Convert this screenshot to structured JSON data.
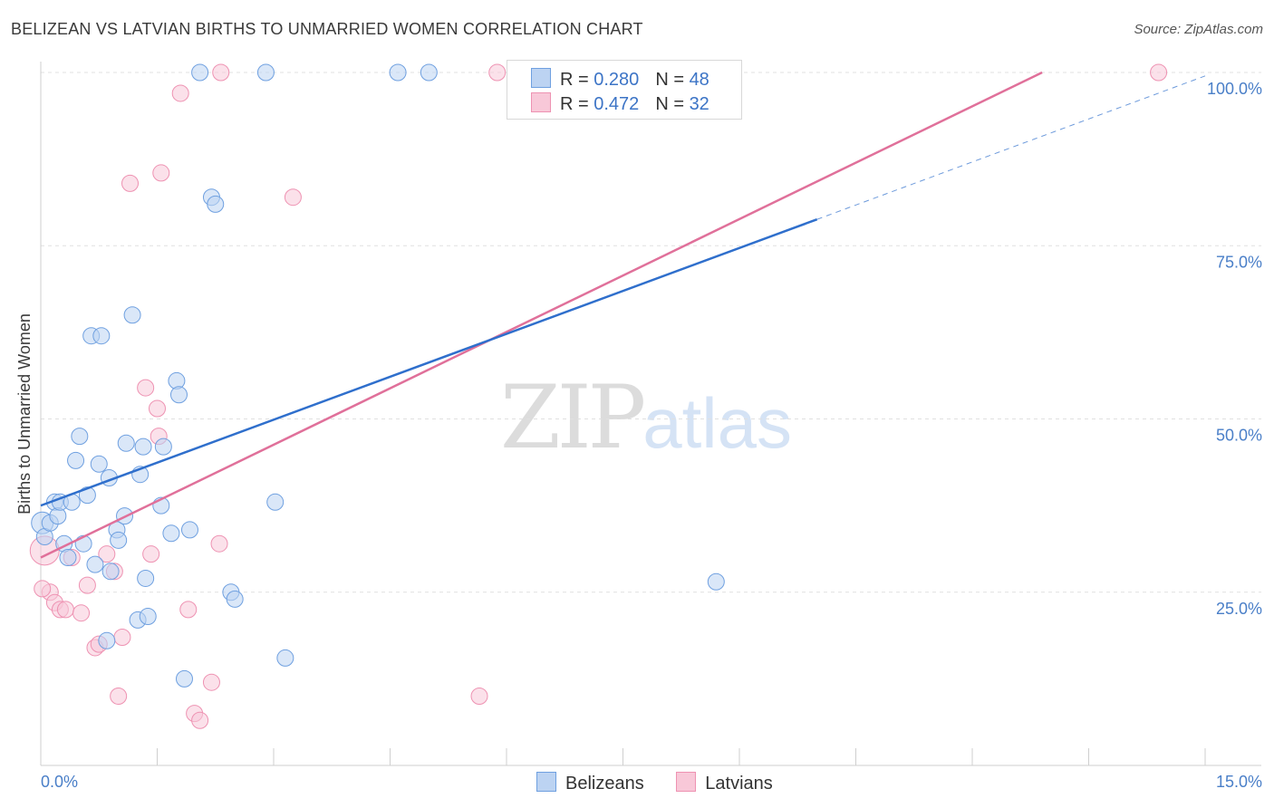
{
  "title": "BELIZEAN VS LATVIAN BIRTHS TO UNMARRIED WOMEN CORRELATION CHART",
  "source": "Source: ZipAtlas.com",
  "watermark": {
    "zip": "ZIP",
    "atlas": "atlas"
  },
  "legend": {
    "rows": [
      {
        "r_label": "R =",
        "r_value": "0.280",
        "n_label": "N =",
        "n_value": "48"
      },
      {
        "r_label": "R =",
        "r_value": "0.472",
        "n_label": "N =",
        "n_value": "32"
      }
    ]
  },
  "bottom_legend": [
    "Belizeans",
    "Latvians"
  ],
  "colors": {
    "belizeans": "#6fa0e0",
    "belizeans_fill": "#bcd3f2",
    "belizeans_line": "#2f6fcc",
    "latvians": "#ee92b2",
    "latvians_fill": "#f8c8d8",
    "latvians_line": "#e0709a",
    "grid": "#e0e0e0",
    "tick": "#4a7fc8"
  },
  "chart_data": {
    "type": "scatter",
    "title": "BELIZEAN VS LATVIAN BIRTHS TO UNMARRIED WOMEN CORRELATION CHART",
    "xlabel": "",
    "ylabel": "Births to Unmarried Women",
    "xlim": [
      0,
      15
    ],
    "ylim": [
      0,
      102
    ],
    "x_tick_labels": [
      "0.0%",
      "15.0%"
    ],
    "y_ticks": [
      25,
      50,
      75,
      100
    ],
    "y_tick_labels": [
      "25.0%",
      "50.0%",
      "75.0%",
      "100.0%"
    ],
    "grid": true,
    "series": [
      {
        "name": "Belizeans",
        "trend": {
          "x0": 0,
          "y0": 37.5,
          "x1": 10,
          "y1": 78.8,
          "dash_x1": 15,
          "dash_y1": 99.5
        },
        "points": [
          [
            0.02,
            35.0
          ],
          [
            0.05,
            33.0
          ],
          [
            0.12,
            35.0
          ],
          [
            0.18,
            38.0
          ],
          [
            0.22,
            36.0
          ],
          [
            0.25,
            38.0
          ],
          [
            0.3,
            32.0
          ],
          [
            0.35,
            30.0
          ],
          [
            0.4,
            38.0
          ],
          [
            0.45,
            44.0
          ],
          [
            0.5,
            47.5
          ],
          [
            0.55,
            32.0
          ],
          [
            0.6,
            39.0
          ],
          [
            0.65,
            62.0
          ],
          [
            0.7,
            29.0
          ],
          [
            0.75,
            43.5
          ],
          [
            0.78,
            62.0
          ],
          [
            0.85,
            18.0
          ],
          [
            0.88,
            41.5
          ],
          [
            0.9,
            28.0
          ],
          [
            0.98,
            34.0
          ],
          [
            1.0,
            32.5
          ],
          [
            1.08,
            36.0
          ],
          [
            1.1,
            46.5
          ],
          [
            1.18,
            65.0
          ],
          [
            1.25,
            21.0
          ],
          [
            1.28,
            42.0
          ],
          [
            1.32,
            46.0
          ],
          [
            1.35,
            27.0
          ],
          [
            1.38,
            21.5
          ],
          [
            1.55,
            37.5
          ],
          [
            1.58,
            46.0
          ],
          [
            1.68,
            33.5
          ],
          [
            1.75,
            55.5
          ],
          [
            1.78,
            53.5
          ],
          [
            1.85,
            12.5
          ],
          [
            1.92,
            34.0
          ],
          [
            2.05,
            100
          ],
          [
            2.2,
            82
          ],
          [
            2.25,
            81
          ],
          [
            2.45,
            25.0
          ],
          [
            2.5,
            24.0
          ],
          [
            2.9,
            100
          ],
          [
            3.02,
            38.0
          ],
          [
            3.15,
            15.5
          ],
          [
            4.6,
            100
          ],
          [
            5.0,
            100
          ],
          [
            8.7,
            26.5
          ]
        ]
      },
      {
        "name": "Latvians",
        "trend": {
          "x0": 0,
          "y0": 30.0,
          "x1": 12.9,
          "y1": 100
        },
        "points": [
          [
            0.05,
            31.0
          ],
          [
            0.12,
            25.0
          ],
          [
            0.18,
            23.5
          ],
          [
            0.25,
            22.5
          ],
          [
            0.32,
            22.5
          ],
          [
            0.4,
            30.0
          ],
          [
            0.52,
            22.0
          ],
          [
            0.6,
            26.0
          ],
          [
            0.7,
            17.0
          ],
          [
            0.75,
            17.5
          ],
          [
            0.85,
            30.5
          ],
          [
            0.95,
            28.0
          ],
          [
            1.0,
            10.0
          ],
          [
            1.05,
            18.5
          ],
          [
            1.15,
            84.0
          ],
          [
            1.35,
            54.5
          ],
          [
            1.42,
            30.5
          ],
          [
            1.5,
            51.5
          ],
          [
            1.52,
            47.5
          ],
          [
            1.55,
            85.5
          ],
          [
            1.8,
            97.0
          ],
          [
            1.9,
            22.5
          ],
          [
            1.98,
            7.5
          ],
          [
            2.05,
            6.5
          ],
          [
            2.2,
            12.0
          ],
          [
            2.3,
            32.0
          ],
          [
            2.32,
            100
          ],
          [
            3.25,
            82.0
          ],
          [
            5.65,
            10.0
          ],
          [
            5.88,
            100
          ],
          [
            14.4,
            100
          ],
          [
            0.02,
            25.5
          ]
        ]
      }
    ]
  }
}
